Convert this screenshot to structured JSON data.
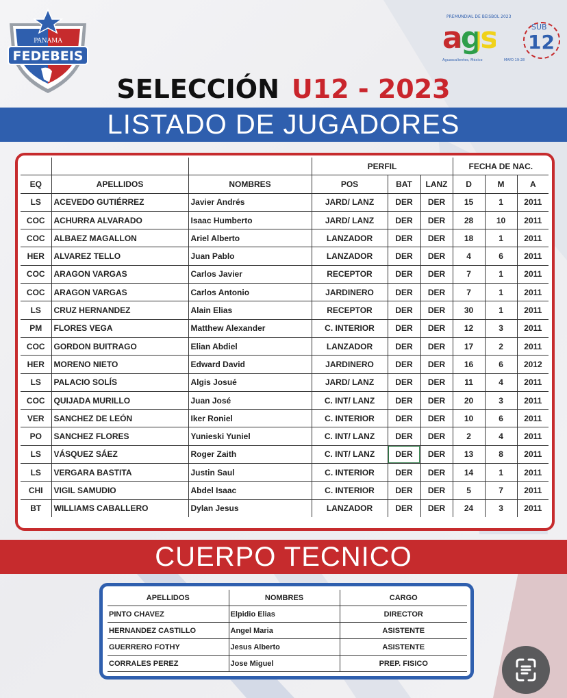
{
  "logos": {
    "left": {
      "top_text": "PANAMA",
      "main_text": "FEDEBEIS"
    },
    "right": {
      "top_text": "PREMUNDIAL DE BEISBOL 2023",
      "main_text": "ags",
      "badge_text": "SUB",
      "badge_number": "12",
      "location_text": "Aguascalientes, México",
      "date_text": "MAYO 19-28"
    }
  },
  "title": {
    "part1": "SELECCIÓN",
    "part2": "U12 - 2023"
  },
  "players_banner": "LISTADO DE JUGADORES",
  "players_table": {
    "group_headers": {
      "perfil": "PERFIL",
      "fecha": "FECHA DE NAC."
    },
    "columns": [
      "EQ",
      "APELLIDOS",
      "NOMBRES",
      "POS",
      "BAT",
      "LANZ",
      "D",
      "M",
      "A"
    ],
    "rows": [
      [
        "LS",
        "ACEVEDO GUTIÉRREZ",
        "Javier Andrés",
        "JARD/ LANZ",
        "DER",
        "DER",
        "15",
        "1",
        "2011"
      ],
      [
        "COC",
        "ACHURRA ALVARADO",
        "Isaac Humberto",
        "JARD/ LANZ",
        "DER",
        "DER",
        "28",
        "10",
        "2011"
      ],
      [
        "COC",
        "ALBAEZ MAGALLON",
        "Ariel Alberto",
        "LANZADOR",
        "DER",
        "DER",
        "18",
        "1",
        "2011"
      ],
      [
        "HER",
        "ALVAREZ TELLO",
        "Juan Pablo",
        "LANZADOR",
        "DER",
        "DER",
        "4",
        "6",
        "2011"
      ],
      [
        "COC",
        "ARAGON VARGAS",
        "Carlos Javier",
        "RECEPTOR",
        "DER",
        "DER",
        "7",
        "1",
        "2011"
      ],
      [
        "COC",
        "ARAGON VARGAS",
        "Carlos Antonio",
        "JARDINERO",
        "DER",
        "DER",
        "7",
        "1",
        "2011"
      ],
      [
        "LS",
        "CRUZ HERNANDEZ",
        "Alain Elias",
        "RECEPTOR",
        "DER",
        "DER",
        "30",
        "1",
        "2011"
      ],
      [
        "PM",
        "FLORES VEGA",
        "Matthew Alexander",
        "C. INTERIOR",
        "DER",
        "DER",
        "12",
        "3",
        "2011"
      ],
      [
        "COC",
        "GORDON BUITRAGO",
        "Elian Abdiel",
        "LANZADOR",
        "DER",
        "DER",
        "17",
        "2",
        "2011"
      ],
      [
        "HER",
        "MORENO NIETO",
        "Edward David",
        "JARDINERO",
        "DER",
        "DER",
        "16",
        "6",
        "2012"
      ],
      [
        "LS",
        "PALACIO SOLÍS",
        "Algis Josué",
        "JARD/ LANZ",
        "DER",
        "DER",
        "11",
        "4",
        "2011"
      ],
      [
        "COC",
        "QUIJADA MURILLO",
        "Juan José",
        "C. INT/ LANZ",
        "DER",
        "DER",
        "20",
        "3",
        "2011"
      ],
      [
        "VER",
        "SANCHEZ DE LEÓN",
        "Iker Roniel",
        "C. INTERIOR",
        "DER",
        "DER",
        "10",
        "6",
        "2011"
      ],
      [
        "PO",
        "SANCHEZ FLORES",
        "Yunieski Yuniel",
        "C. INT/ LANZ",
        "DER",
        "DER",
        "2",
        "4",
        "2011"
      ],
      [
        "LS",
        "VÁSQUEZ SÁEZ",
        "Roger Zaith",
        "C. INT/ LANZ",
        "DER",
        "DER",
        "13",
        "8",
        "2011"
      ],
      [
        "LS",
        "VERGARA BASTITA",
        "Justin Saul",
        "C. INTERIOR",
        "DER",
        "DER",
        "14",
        "1",
        "2011"
      ],
      [
        "CHI",
        "VIGIL SAMUDIO",
        "Abdel Isaac",
        "C. INTERIOR",
        "DER",
        "DER",
        "5",
        "7",
        "2011"
      ],
      [
        "BT",
        "WILLIAMS CABALLERO",
        "Dylan Jesus",
        "LANZADOR",
        "DER",
        "DER",
        "24",
        "3",
        "2011"
      ]
    ]
  },
  "staff_banner": "CUERPO TECNICO",
  "staff_table": {
    "columns": [
      "APELLIDOS",
      "NOMBRES",
      "CARGO"
    ],
    "rows": [
      [
        "PINTO CHAVEZ",
        "Elpidio Elias",
        "DIRECTOR"
      ],
      [
        "HERNANDEZ CASTILLO",
        "Angel Maria",
        "ASISTENTE"
      ],
      [
        "GUERRERO FOTHY",
        "Jesus Alberto",
        "ASISTENTE"
      ],
      [
        "CORRALES PEREZ",
        "Jose Miguel",
        "PREP. FISICO"
      ]
    ]
  },
  "colors": {
    "blue": "#2f5fae",
    "red": "#c62b2d",
    "dark": "#111111"
  },
  "overlay": {
    "icon": "scan-text-icon"
  }
}
